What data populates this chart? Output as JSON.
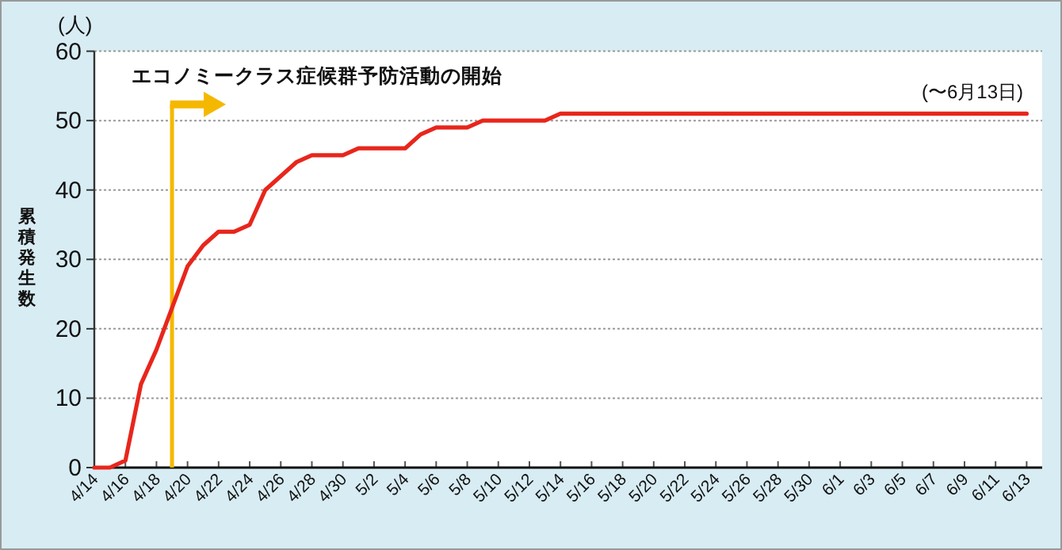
{
  "chart_data": {
    "type": "line",
    "ylabel": "累積発生数",
    "color": "#e8261c",
    "x": [
      "--04-14",
      "--04-15",
      "--04-16",
      "--04-17",
      "--04-18",
      "--04-19",
      "--04-20",
      "--04-21",
      "--04-22",
      "--04-23",
      "--04-24",
      "--04-25",
      "--04-26",
      "--04-27",
      "--04-28",
      "--04-29",
      "--04-30",
      "--05-01",
      "--05-02",
      "--05-03",
      "--05-04",
      "--05-05",
      "--05-06",
      "--05-07",
      "--05-08",
      "--05-09",
      "--05-10",
      "--05-11",
      "--05-12",
      "--05-13",
      "--05-14",
      "--05-15",
      "--05-16",
      "--05-17",
      "--05-18",
      "--05-19",
      "--05-20",
      "--05-21",
      "--05-22",
      "--05-23",
      "--05-24",
      "--05-25",
      "--05-26",
      "--05-27",
      "--05-28",
      "--05-29",
      "--05-30",
      "--05-31",
      "--06-01",
      "--06-02",
      "--06-03",
      "--06-04",
      "--06-05",
      "--06-06",
      "--06-07",
      "--06-08",
      "--06-09",
      "--06-10",
      "--06-11",
      "--06-12",
      "--06-13"
    ],
    "values": [
      0,
      0,
      1,
      12,
      17,
      23,
      29,
      32,
      34,
      34,
      35,
      40,
      42,
      44,
      45,
      45,
      45,
      46,
      46,
      46,
      46,
      48,
      49,
      49,
      49,
      50,
      50,
      50,
      50,
      50,
      51,
      51,
      51,
      51,
      51,
      51,
      51,
      51,
      51,
      51,
      51,
      51,
      51,
      51,
      51,
      51,
      51,
      51,
      51,
      51,
      51,
      51,
      51,
      51,
      51,
      51,
      51,
      51,
      51,
      51,
      51
    ],
    "xlim": [
      "--04-14",
      "--06-14"
    ],
    "ylim": [
      0,
      60
    ],
    "yticks": [
      0,
      10,
      20,
      30,
      40,
      50,
      60
    ],
    "xticks": [
      {
        "value": "--04-14",
        "label": "4/14"
      },
      {
        "value": "--04-16",
        "label": "4/16"
      },
      {
        "value": "--04-18",
        "label": "4/18"
      },
      {
        "value": "--04-20",
        "label": "4/20"
      },
      {
        "value": "--04-22",
        "label": "4/22"
      },
      {
        "value": "--04-24",
        "label": "4/24"
      },
      {
        "value": "--04-26",
        "label": "4/26"
      },
      {
        "value": "--04-28",
        "label": "4/28"
      },
      {
        "value": "--04-30",
        "label": "4/30"
      },
      {
        "value": "--05-02",
        "label": "5/2"
      },
      {
        "value": "--05-04",
        "label": "5/4"
      },
      {
        "value": "--05-06",
        "label": "5/6"
      },
      {
        "value": "--05-08",
        "label": "5/8"
      },
      {
        "value": "--05-10",
        "label": "5/10"
      },
      {
        "value": "--05-12",
        "label": "5/12"
      },
      {
        "value": "--05-14",
        "label": "5/14"
      },
      {
        "value": "--05-16",
        "label": "5/16"
      },
      {
        "value": "--05-18",
        "label": "5/18"
      },
      {
        "value": "--05-20",
        "label": "5/20"
      },
      {
        "value": "--05-22",
        "label": "5/22"
      },
      {
        "value": "--05-24",
        "label": "5/24"
      },
      {
        "value": "--05-26",
        "label": "5/26"
      },
      {
        "value": "--05-28",
        "label": "5/28"
      },
      {
        "value": "--05-30",
        "label": "5/30"
      },
      {
        "value": "--06-01",
        "label": "6/1"
      },
      {
        "value": "--06-03",
        "label": "6/3"
      },
      {
        "value": "--06-05",
        "label": "6/5"
      },
      {
        "value": "--06-07",
        "label": "6/7"
      },
      {
        "value": "--06-09",
        "label": "6/9"
      },
      {
        "value": "--06-11",
        "label": "6/11"
      },
      {
        "value": "--06-13",
        "label": "6/13"
      }
    ],
    "grid": "y",
    "ref_lines": [
      {
        "axis": "x",
        "value": "--04-19",
        "label": "エコノミークラス症候群予防活動の開始",
        "color": "#f5b800"
      }
    ],
    "annotations": [
      "(人)",
      "(〜6月13日)"
    ]
  }
}
